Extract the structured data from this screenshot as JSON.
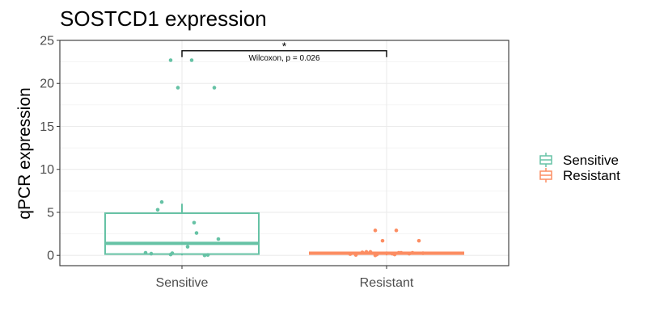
{
  "chart_data": {
    "type": "box",
    "title": "SOSTCD1 expression",
    "xlabel": "",
    "ylabel": "qPCR expression",
    "ylim": [
      -1.2,
      25
    ],
    "yticks": [
      0,
      5,
      10,
      15,
      20,
      25
    ],
    "categories": [
      "Sensitive",
      "Resistant"
    ],
    "grid": true,
    "legend": {
      "position": "right",
      "entries": [
        "Sensitive",
        "Resistant"
      ]
    },
    "series": [
      {
        "name": "Sensitive",
        "color": "#66c2a5",
        "box": {
          "min": 0.0,
          "q1": 0.15,
          "median": 1.4,
          "q3": 4.9,
          "max": 6.0
        },
        "points": [
          22.7,
          22.7,
          19.5,
          19.5,
          6.2,
          5.3,
          3.8,
          2.6,
          1.9,
          1.0,
          0.3,
          0.25,
          0.2,
          0.1,
          0.05,
          0.0
        ]
      },
      {
        "name": "Resistant",
        "color": "#fc8d62",
        "box": {
          "min": 0.0,
          "q1": 0.15,
          "median": 0.25,
          "q3": 0.35,
          "max": 0.45
        },
        "points": [
          2.9,
          2.9,
          1.7,
          1.7,
          0.4,
          0.35,
          0.3,
          0.3,
          0.25,
          0.2,
          0.15,
          0.1,
          0.05,
          0.0,
          0.3,
          0.2,
          0.4,
          0.1
        ]
      }
    ],
    "annotations": {
      "significance": "*",
      "test_label": "Wilcoxon, p = 0.026",
      "bracket_y": 23.8
    }
  }
}
